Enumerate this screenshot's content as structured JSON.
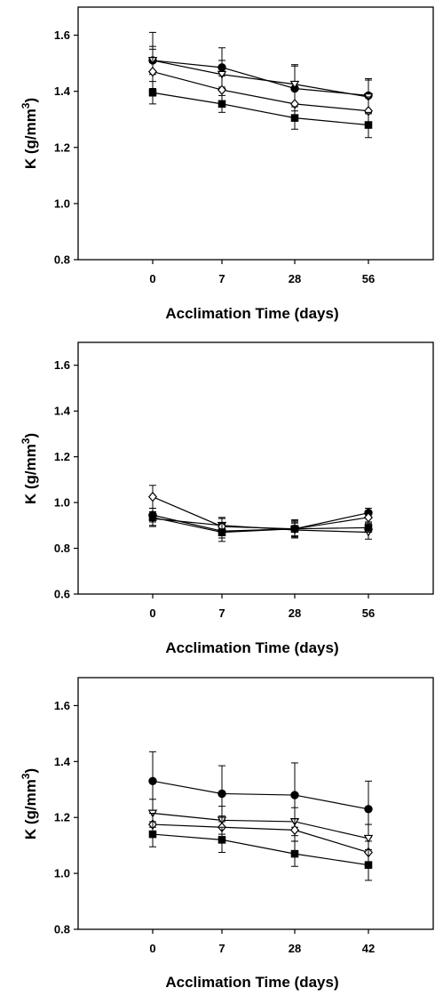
{
  "chart_data": [
    {
      "type": "line",
      "categories": [
        "0",
        "7",
        "28",
        "56"
      ],
      "yticks": [
        "0.8",
        "1.0",
        "1.2",
        "1.4",
        "1.6"
      ],
      "ylim": [
        0.8,
        1.7
      ],
      "ylabel": {
        "main": "K (g/mm",
        "sup": "3",
        "close": ")"
      },
      "xlabel": "Acclimation Time (days)",
      "grid": false,
      "series": [
        {
          "marker": "circle-filled",
          "values": [
            1.51,
            1.485,
            1.41,
            1.385
          ],
          "errors": [
            0.1,
            0.07,
            0.08,
            0.06
          ]
        },
        {
          "marker": "triangle-open",
          "values": [
            1.51,
            1.46,
            1.425,
            1.38
          ],
          "errors": [
            0.05,
            0.05,
            0.07,
            0.06
          ]
        },
        {
          "marker": "diamond-open",
          "values": [
            1.47,
            1.405,
            1.355,
            1.33
          ],
          "errors": [
            0.08,
            0.05,
            0.05,
            0.05
          ]
        },
        {
          "marker": "square-filled",
          "values": [
            1.395,
            1.355,
            1.305,
            1.28
          ],
          "errors": [
            0.04,
            0.03,
            0.04,
            0.045
          ]
        }
      ]
    },
    {
      "type": "line",
      "categories": [
        "0",
        "7",
        "28",
        "56"
      ],
      "yticks": [
        "0.6",
        "0.8",
        "1.0",
        "1.2",
        "1.4",
        "1.6"
      ],
      "ylim": [
        0.6,
        1.7
      ],
      "ylabel": {
        "main": "K (g/mm",
        "sup": "3",
        "close": ")"
      },
      "xlabel": "Acclimation Time (days)",
      "grid": false,
      "series": [
        {
          "marker": "circle-filled",
          "values": [
            0.945,
            0.875,
            0.885,
            0.955
          ],
          "errors": [
            0.03,
            0.03,
            0.04,
            0.02
          ]
        },
        {
          "marker": "triangle-open",
          "values": [
            0.93,
            0.9,
            0.88,
            0.87
          ],
          "errors": [
            0.03,
            0.03,
            0.03,
            0.03
          ]
        },
        {
          "marker": "diamond-open",
          "values": [
            1.025,
            0.895,
            0.885,
            0.935
          ],
          "errors": [
            0.05,
            0.04,
            0.035,
            0.02
          ]
        },
        {
          "marker": "square-filled",
          "values": [
            0.935,
            0.87,
            0.885,
            0.89
          ],
          "errors": [
            0.04,
            0.04,
            0.03,
            0.02
          ]
        }
      ]
    },
    {
      "type": "line",
      "categories": [
        "0",
        "7",
        "28",
        "42"
      ],
      "yticks": [
        "0.8",
        "1.0",
        "1.2",
        "1.4",
        "1.6"
      ],
      "ylim": [
        0.8,
        1.7
      ],
      "ylabel": {
        "main": "K (g/mm",
        "sup": "3",
        "close": ")"
      },
      "xlabel": "Acclimation Time (days)",
      "grid": false,
      "series": [
        {
          "marker": "circle-filled",
          "values": [
            1.33,
            1.285,
            1.28,
            1.23
          ],
          "errors": [
            0.105,
            0.1,
            0.115,
            0.1
          ]
        },
        {
          "marker": "triangle-open",
          "values": [
            1.215,
            1.19,
            1.185,
            1.125
          ],
          "errors": [
            0.05,
            0.05,
            0.05,
            0.05
          ]
        },
        {
          "marker": "diamond-open",
          "values": [
            1.175,
            1.165,
            1.155,
            1.075
          ],
          "errors": [
            0.04,
            0.04,
            0.04,
            0.04
          ]
        },
        {
          "marker": "square-filled",
          "values": [
            1.14,
            1.12,
            1.07,
            1.03
          ],
          "errors": [
            0.045,
            0.045,
            0.045,
            0.055
          ]
        }
      ]
    }
  ]
}
